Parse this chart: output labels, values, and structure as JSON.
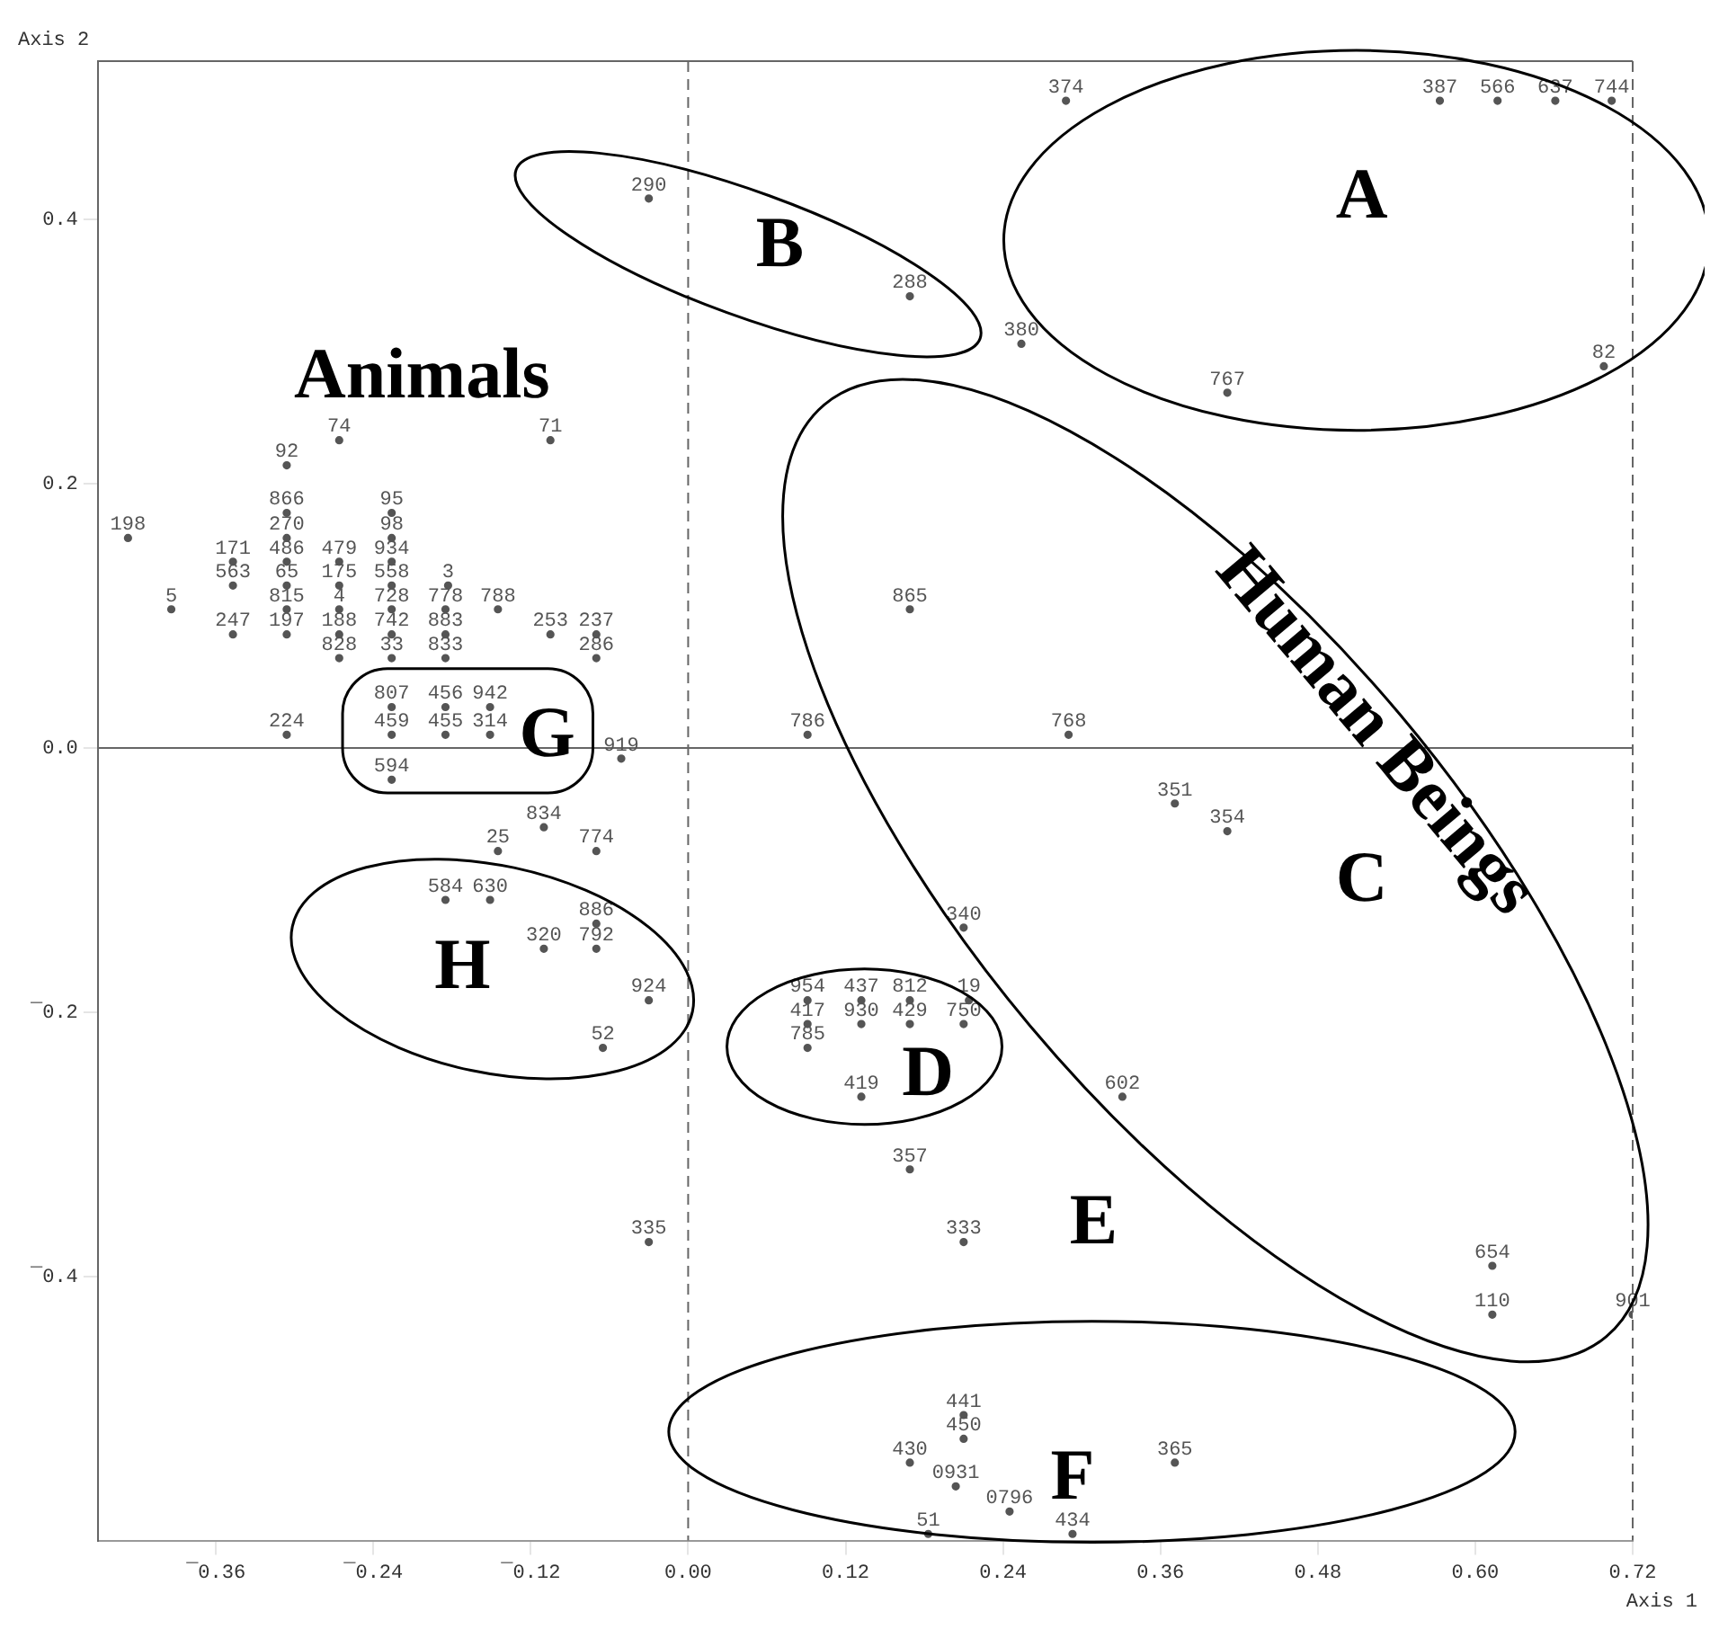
{
  "chart_data": {
    "type": "scatter",
    "xlabel": "Axis 1",
    "ylabel": "Axis 2",
    "xlim": [
      -0.45,
      0.72
    ],
    "ylim": [
      -0.6,
      0.52
    ],
    "xticks": [
      {
        "value": -0.36,
        "label": "¯0.36"
      },
      {
        "value": -0.24,
        "label": "¯0.24"
      },
      {
        "value": -0.12,
        "label": "¯0.12"
      },
      {
        "value": 0,
        "label": "0.00"
      },
      {
        "value": 0.12,
        "label": "0.12"
      },
      {
        "value": 0.24,
        "label": "0.24"
      },
      {
        "value": 0.36,
        "label": "0.36"
      },
      {
        "value": 0.48,
        "label": "0.48"
      },
      {
        "value": 0.6,
        "label": "0.60"
      },
      {
        "value": 0.72,
        "label": "0.72"
      }
    ],
    "yticks": [
      {
        "value": -0.4,
        "label": "¯0.4"
      },
      {
        "value": -0.2,
        "label": "¯0.2"
      },
      {
        "value": 0,
        "label": "0.0"
      },
      {
        "value": 0.2,
        "label": "0.2"
      },
      {
        "value": 0.4,
        "label": "0.4"
      }
    ],
    "grid": false,
    "legend": false,
    "marker": "circle",
    "ref_lines": [
      {
        "axis": "y",
        "value": 0,
        "line_style": "solid"
      },
      {
        "axis": "x",
        "value": 0,
        "line_style": "dashed"
      }
    ],
    "series": [
      {
        "color": "#555555",
        "x": [
          0.288,
          0.573,
          0.617,
          0.661,
          0.704,
          -0.03,
          0.169,
          0.254,
          0.698,
          0.411,
          -0.266,
          -0.105,
          -0.306,
          -0.306,
          -0.226,
          -0.427,
          -0.306,
          -0.226,
          -0.347,
          -0.306,
          -0.266,
          -0.226,
          -0.347,
          -0.306,
          -0.266,
          -0.226,
          -0.183,
          -0.394,
          -0.306,
          -0.266,
          -0.226,
          -0.185,
          -0.145,
          0.169,
          -0.347,
          -0.306,
          -0.266,
          -0.226,
          -0.185,
          -0.105,
          -0.07,
          -0.266,
          -0.226,
          -0.185,
          -0.07,
          -0.226,
          -0.185,
          -0.151,
          -0.306,
          -0.226,
          -0.185,
          -0.151,
          0.091,
          0.29,
          -0.051,
          -0.226,
          0.371,
          0.411,
          -0.11,
          -0.145,
          -0.07,
          -0.185,
          -0.151,
          -0.07,
          0.21,
          -0.11,
          -0.07,
          -0.03,
          0.091,
          0.132,
          0.169,
          0.214,
          0.091,
          0.132,
          0.169,
          0.21,
          0.091,
          -0.065,
          0.331,
          0.132,
          0.169,
          -0.03,
          0.21,
          0.613,
          0.613,
          0.72,
          0.21,
          0.21,
          0.169,
          0.371,
          0.204,
          0.245,
          0.183,
          0.293
        ],
        "values": [
          0.49,
          0.49,
          0.49,
          0.49,
          0.49,
          0.416,
          0.342,
          0.306,
          0.289,
          0.269,
          0.233,
          0.233,
          0.214,
          0.178,
          0.178,
          0.159,
          0.159,
          0.159,
          0.141,
          0.141,
          0.141,
          0.141,
          0.123,
          0.123,
          0.123,
          0.123,
          0.123,
          0.105,
          0.105,
          0.105,
          0.105,
          0.105,
          0.105,
          0.105,
          0.086,
          0.086,
          0.086,
          0.086,
          0.086,
          0.086,
          0.086,
          0.068,
          0.068,
          0.068,
          0.068,
          0.031,
          0.031,
          0.031,
          0.01,
          0.01,
          0.01,
          0.01,
          0.01,
          0.01,
          -0.008,
          -0.024,
          -0.042,
          -0.063,
          -0.06,
          -0.078,
          -0.078,
          -0.115,
          -0.115,
          -0.133,
          -0.136,
          -0.152,
          -0.152,
          -0.191,
          -0.191,
          -0.191,
          -0.191,
          -0.191,
          -0.209,
          -0.209,
          -0.209,
          -0.209,
          -0.227,
          -0.227,
          -0.264,
          -0.264,
          -0.319,
          -0.374,
          -0.374,
          -0.392,
          -0.429,
          -0.429,
          -0.505,
          -0.523,
          -0.541,
          -0.541,
          -0.559,
          -0.578,
          -0.595,
          -0.595
        ]
      }
    ],
    "annotations": [
      {
        "text": "374",
        "x": 0.288,
        "y": 0.49
      },
      {
        "text": "387",
        "x": 0.573,
        "y": 0.49
      },
      {
        "text": "566",
        "x": 0.617,
        "y": 0.49
      },
      {
        "text": "637",
        "x": 0.661,
        "y": 0.49
      },
      {
        "text": "744",
        "x": 0.704,
        "y": 0.49
      },
      {
        "text": "290",
        "x": -0.03,
        "y": 0.416
      },
      {
        "text": "288",
        "x": 0.169,
        "y": 0.342
      },
      {
        "text": "380",
        "x": 0.254,
        "y": 0.306
      },
      {
        "text": "82",
        "x": 0.698,
        "y": 0.289
      },
      {
        "text": "767",
        "x": 0.411,
        "y": 0.269
      },
      {
        "text": "74",
        "x": -0.266,
        "y": 0.233
      },
      {
        "text": "71",
        "x": -0.105,
        "y": 0.233
      },
      {
        "text": "92",
        "x": -0.306,
        "y": 0.214
      },
      {
        "text": "866",
        "x": -0.306,
        "y": 0.178
      },
      {
        "text": "95",
        "x": -0.226,
        "y": 0.178
      },
      {
        "text": "198",
        "x": -0.427,
        "y": 0.159
      },
      {
        "text": "270",
        "x": -0.306,
        "y": 0.159
      },
      {
        "text": "98",
        "x": -0.226,
        "y": 0.159
      },
      {
        "text": "171",
        "x": -0.347,
        "y": 0.141
      },
      {
        "text": "486",
        "x": -0.306,
        "y": 0.141
      },
      {
        "text": "479",
        "x": -0.266,
        "y": 0.141
      },
      {
        "text": "934",
        "x": -0.226,
        "y": 0.141
      },
      {
        "text": "563",
        "x": -0.347,
        "y": 0.123
      },
      {
        "text": "65",
        "x": -0.306,
        "y": 0.123
      },
      {
        "text": "175",
        "x": -0.266,
        "y": 0.123
      },
      {
        "text": "558",
        "x": -0.226,
        "y": 0.123
      },
      {
        "text": "3",
        "x": -0.183,
        "y": 0.123
      },
      {
        "text": "5",
        "x": -0.394,
        "y": 0.105
      },
      {
        "text": "815",
        "x": -0.306,
        "y": 0.105
      },
      {
        "text": "4",
        "x": -0.266,
        "y": 0.105
      },
      {
        "text": "728",
        "x": -0.226,
        "y": 0.105
      },
      {
        "text": "778",
        "x": -0.185,
        "y": 0.105
      },
      {
        "text": "788",
        "x": -0.145,
        "y": 0.105
      },
      {
        "text": "865",
        "x": 0.169,
        "y": 0.105
      },
      {
        "text": "247",
        "x": -0.347,
        "y": 0.086
      },
      {
        "text": "197",
        "x": -0.306,
        "y": 0.086
      },
      {
        "text": "188",
        "x": -0.266,
        "y": 0.086
      },
      {
        "text": "742",
        "x": -0.226,
        "y": 0.086
      },
      {
        "text": "883",
        "x": -0.185,
        "y": 0.086
      },
      {
        "text": "253",
        "x": -0.105,
        "y": 0.086
      },
      {
        "text": "237",
        "x": -0.07,
        "y": 0.086
      },
      {
        "text": "828",
        "x": -0.266,
        "y": 0.068
      },
      {
        "text": "33",
        "x": -0.226,
        "y": 0.068
      },
      {
        "text": "833",
        "x": -0.185,
        "y": 0.068
      },
      {
        "text": "286",
        "x": -0.07,
        "y": 0.068
      },
      {
        "text": "807",
        "x": -0.226,
        "y": 0.031
      },
      {
        "text": "456",
        "x": -0.185,
        "y": 0.031
      },
      {
        "text": "942",
        "x": -0.151,
        "y": 0.031
      },
      {
        "text": "224",
        "x": -0.306,
        "y": 0.01
      },
      {
        "text": "459",
        "x": -0.226,
        "y": 0.01
      },
      {
        "text": "455",
        "x": -0.185,
        "y": 0.01
      },
      {
        "text": "314",
        "x": -0.151,
        "y": 0.01
      },
      {
        "text": "786",
        "x": 0.091,
        "y": 0.01
      },
      {
        "text": "768",
        "x": 0.29,
        "y": 0.01
      },
      {
        "text": "919",
        "x": -0.051,
        "y": -0.008
      },
      {
        "text": "594",
        "x": -0.226,
        "y": -0.024
      },
      {
        "text": "351",
        "x": 0.371,
        "y": -0.042
      },
      {
        "text": "354",
        "x": 0.411,
        "y": -0.063
      },
      {
        "text": "834",
        "x": -0.11,
        "y": -0.06
      },
      {
        "text": "25",
        "x": -0.145,
        "y": -0.078
      },
      {
        "text": "774",
        "x": -0.07,
        "y": -0.078
      },
      {
        "text": "584",
        "x": -0.185,
        "y": -0.115
      },
      {
        "text": "630",
        "x": -0.151,
        "y": -0.115
      },
      {
        "text": "886",
        "x": -0.07,
        "y": -0.133
      },
      {
        "text": "340",
        "x": 0.21,
        "y": -0.136
      },
      {
        "text": "320",
        "x": -0.11,
        "y": -0.152
      },
      {
        "text": "792",
        "x": -0.07,
        "y": -0.152
      },
      {
        "text": "924",
        "x": -0.03,
        "y": -0.191
      },
      {
        "text": "954",
        "x": 0.091,
        "y": -0.191
      },
      {
        "text": "437",
        "x": 0.132,
        "y": -0.191
      },
      {
        "text": "812",
        "x": 0.169,
        "y": -0.191
      },
      {
        "text": "19",
        "x": 0.214,
        "y": -0.191
      },
      {
        "text": "417",
        "x": 0.091,
        "y": -0.209
      },
      {
        "text": "930",
        "x": 0.132,
        "y": -0.209
      },
      {
        "text": "429",
        "x": 0.169,
        "y": -0.209
      },
      {
        "text": "750",
        "x": 0.21,
        "y": -0.209
      },
      {
        "text": "785",
        "x": 0.091,
        "y": -0.227
      },
      {
        "text": "52",
        "x": -0.065,
        "y": -0.227
      },
      {
        "text": "602",
        "x": 0.331,
        "y": -0.264
      },
      {
        "text": "419",
        "x": 0.132,
        "y": -0.264
      },
      {
        "text": "357",
        "x": 0.169,
        "y": -0.319
      },
      {
        "text": "335",
        "x": -0.03,
        "y": -0.374
      },
      {
        "text": "333",
        "x": 0.21,
        "y": -0.374
      },
      {
        "text": "654",
        "x": 0.613,
        "y": -0.392
      },
      {
        "text": "110",
        "x": 0.613,
        "y": -0.429
      },
      {
        "text": "901",
        "x": 0.72,
        "y": -0.429
      },
      {
        "text": "441",
        "x": 0.21,
        "y": -0.505
      },
      {
        "text": "450",
        "x": 0.21,
        "y": -0.523
      },
      {
        "text": "430",
        "x": 0.169,
        "y": -0.541
      },
      {
        "text": "365",
        "x": 0.371,
        "y": -0.541
      },
      {
        "text": "0931",
        "x": 0.204,
        "y": -0.559
      },
      {
        "text": "0796",
        "x": 0.245,
        "y": -0.578
      },
      {
        "text": "51",
        "x": 0.183,
        "y": -0.595
      },
      {
        "text": "434",
        "x": 0.293,
        "y": -0.595
      },
      "A",
      "B",
      "C",
      "D",
      "E",
      "F",
      "G",
      "H",
      "Animals",
      "Human Beings"
    ]
  }
}
